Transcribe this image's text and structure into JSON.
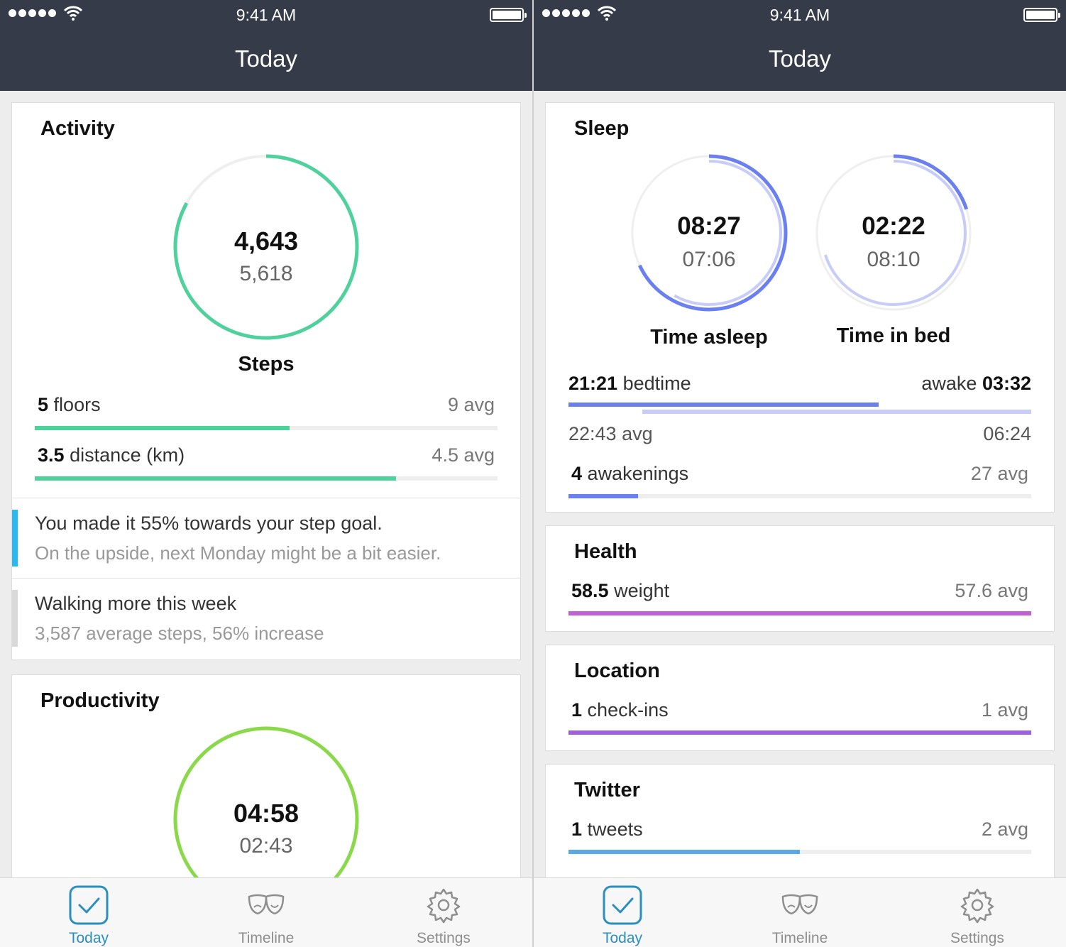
{
  "status_bar": {
    "time": "9:41 AM"
  },
  "header": {
    "title": "Today"
  },
  "colors": {
    "header_bg": "#353b48",
    "activity_green": "#4fd19b",
    "productivity_green": "#8ad94a",
    "sleep_blue": "#6a7ff0",
    "sleep_blue_light": "#c7cdf8",
    "health_magenta": "#c25fd6",
    "location_purple": "#9e5fe0",
    "twitter_blue": "#5aa9e6",
    "tab_active": "#2a8fbd",
    "insight_accent": "#2ab8f0",
    "insight_accent_grey": "#d9d9d9"
  },
  "activity": {
    "title": "Activity",
    "ring_value": "4,643",
    "ring_avg": "5,618",
    "ring_progress": 0.83,
    "ring_label": "Steps",
    "rows": [
      {
        "value": "5",
        "label": "floors",
        "avg": "9 avg",
        "progress": 0.55
      },
      {
        "value": "3.5",
        "label": "distance (km)",
        "avg": "4.5 avg",
        "progress": 0.78
      }
    ],
    "insights": [
      {
        "line1": "You made it 55% towards your step goal.",
        "line2": "On the upside, next Monday might be a bit easier."
      },
      {
        "line1": "Walking more this week",
        "line2": "3,587 average steps, 56% increase"
      }
    ]
  },
  "productivity": {
    "title": "Productivity",
    "ring_value": "04:58",
    "ring_avg": "02:43"
  },
  "sleep": {
    "title": "Sleep",
    "asleep": {
      "value": "08:27",
      "avg": "07:06",
      "label": "Time asleep",
      "progress": 0.68,
      "avg_progress": 0.58
    },
    "in_bed": {
      "value": "02:22",
      "avg": "08:10",
      "label": "Time in bed",
      "progress": 0.2,
      "avg_progress": 0.7
    },
    "bedtime_value": "21:21",
    "bedtime_label": "bedtime",
    "awake_label": "awake",
    "awake_value": "03:32",
    "avg_bedtime": "22:43 avg",
    "avg_awake": "06:24",
    "awakenings_value": "4",
    "awakenings_label": "awakenings",
    "awakenings_avg": "27 avg",
    "awakenings_progress": 0.15
  },
  "health": {
    "title": "Health",
    "value": "58.5",
    "label": "weight",
    "avg": "57.6 avg"
  },
  "location": {
    "title": "Location",
    "value": "1",
    "label": "check-ins",
    "avg": "1 avg"
  },
  "twitter": {
    "title": "Twitter",
    "value": "1",
    "label": "tweets",
    "avg": "2 avg",
    "progress": 0.5
  },
  "tabs": [
    {
      "label": "Today",
      "icon": "checkmark-icon"
    },
    {
      "label": "Timeline",
      "icon": "theater-masks-icon"
    },
    {
      "label": "Settings",
      "icon": "gear-icon"
    }
  ]
}
